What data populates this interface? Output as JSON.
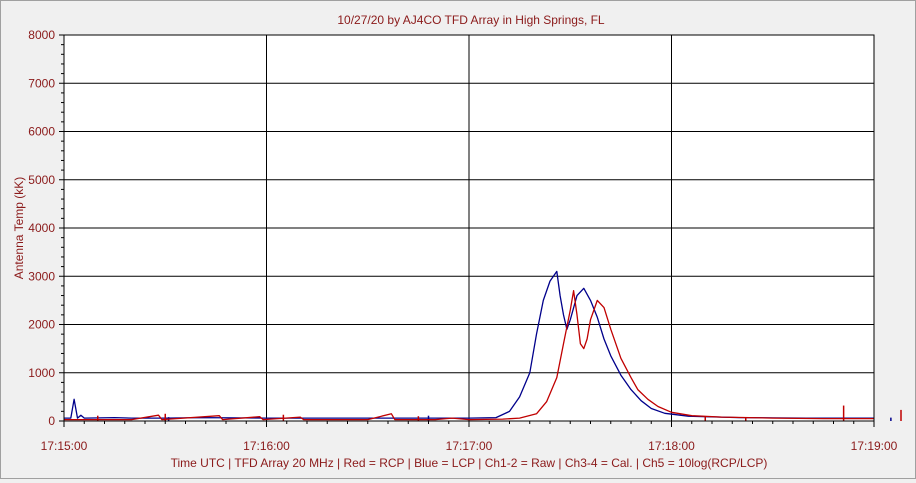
{
  "chart_data": {
    "type": "line",
    "title": "10/27/20  by  AJ4CO TFD Array  in  High Springs, FL",
    "xlabel": "Time UTC | TFD Array 20 MHz | Red = RCP | Blue = LCP | Ch1-2 = Raw | Ch3-4 = Cal. | Ch5 = 10log(RCP/LCP)",
    "ylabel": "Antenna Temp (kK)",
    "x_tick_labels": [
      "17:15:00",
      "17:16:00",
      "17:17:00",
      "17:18:00",
      "17:19:00"
    ],
    "x_unit": "seconds after 17:15:00",
    "xlim": [
      0,
      240
    ],
    "y_ticks": [
      0,
      1000,
      2000,
      3000,
      4000,
      5000,
      6000,
      7000,
      8000
    ],
    "ylim": [
      0,
      8000
    ],
    "grid": true,
    "colors": {
      "title": "#8b1a1a",
      "axis_text": "#8b1a1a",
      "plot_bg": "#ffffff",
      "grid": "#000000"
    },
    "series": [
      {
        "name": "RCP",
        "color": "#c00000",
        "points": [
          [
            0,
            30
          ],
          [
            20,
            30
          ],
          [
            28,
            120
          ],
          [
            29,
            30
          ],
          [
            46,
            110
          ],
          [
            47,
            30
          ],
          [
            58,
            90
          ],
          [
            59,
            30
          ],
          [
            70,
            80
          ],
          [
            71,
            30
          ],
          [
            90,
            30
          ],
          [
            97,
            150
          ],
          [
            98,
            30
          ],
          [
            110,
            30
          ],
          [
            115,
            60
          ],
          [
            120,
            30
          ],
          [
            130,
            40
          ],
          [
            135,
            60
          ],
          [
            140,
            150
          ],
          [
            143,
            400
          ],
          [
            146,
            900
          ],
          [
            148,
            1600
          ],
          [
            150,
            2300
          ],
          [
            151,
            2700
          ],
          [
            152,
            2200
          ],
          [
            153,
            1600
          ],
          [
            154,
            1500
          ],
          [
            155,
            1700
          ],
          [
            156,
            2100
          ],
          [
            158,
            2500
          ],
          [
            160,
            2350
          ],
          [
            162,
            1900
          ],
          [
            165,
            1300
          ],
          [
            168,
            900
          ],
          [
            170,
            650
          ],
          [
            173,
            450
          ],
          [
            176,
            300
          ],
          [
            180,
            180
          ],
          [
            186,
            110
          ],
          [
            195,
            80
          ],
          [
            210,
            60
          ],
          [
            225,
            50
          ],
          [
            240,
            50
          ]
        ],
        "spikes": [
          [
            10,
            110
          ],
          [
            30,
            150
          ],
          [
            65,
            130
          ],
          [
            105,
            100
          ],
          [
            190,
            90
          ],
          [
            202,
            80
          ],
          [
            231,
            320
          ],
          [
            248,
            230
          ]
        ]
      },
      {
        "name": "LCP",
        "color": "#00008b",
        "points": [
          [
            0,
            60
          ],
          [
            2,
            60
          ],
          [
            3,
            450
          ],
          [
            4,
            60
          ],
          [
            5,
            120
          ],
          [
            6,
            60
          ],
          [
            15,
            70
          ],
          [
            20,
            60
          ],
          [
            30,
            60
          ],
          [
            40,
            70
          ],
          [
            60,
            60
          ],
          [
            80,
            60
          ],
          [
            95,
            60
          ],
          [
            100,
            60
          ],
          [
            110,
            60
          ],
          [
            120,
            60
          ],
          [
            128,
            70
          ],
          [
            132,
            200
          ],
          [
            135,
            500
          ],
          [
            138,
            1000
          ],
          [
            140,
            1800
          ],
          [
            142,
            2500
          ],
          [
            144,
            2900
          ],
          [
            146,
            3100
          ],
          [
            147,
            2600
          ],
          [
            148,
            2200
          ],
          [
            149,
            1900
          ],
          [
            150,
            2100
          ],
          [
            152,
            2600
          ],
          [
            154,
            2750
          ],
          [
            156,
            2500
          ],
          [
            158,
            2150
          ],
          [
            160,
            1700
          ],
          [
            162,
            1350
          ],
          [
            165,
            950
          ],
          [
            168,
            650
          ],
          [
            171,
            420
          ],
          [
            174,
            260
          ],
          [
            178,
            160
          ],
          [
            185,
            100
          ],
          [
            200,
            70
          ],
          [
            220,
            60
          ],
          [
            240,
            60
          ]
        ],
        "spikes": [
          [
            31,
            80
          ],
          [
            108,
            110
          ],
          [
            245,
            70
          ]
        ]
      }
    ]
  }
}
